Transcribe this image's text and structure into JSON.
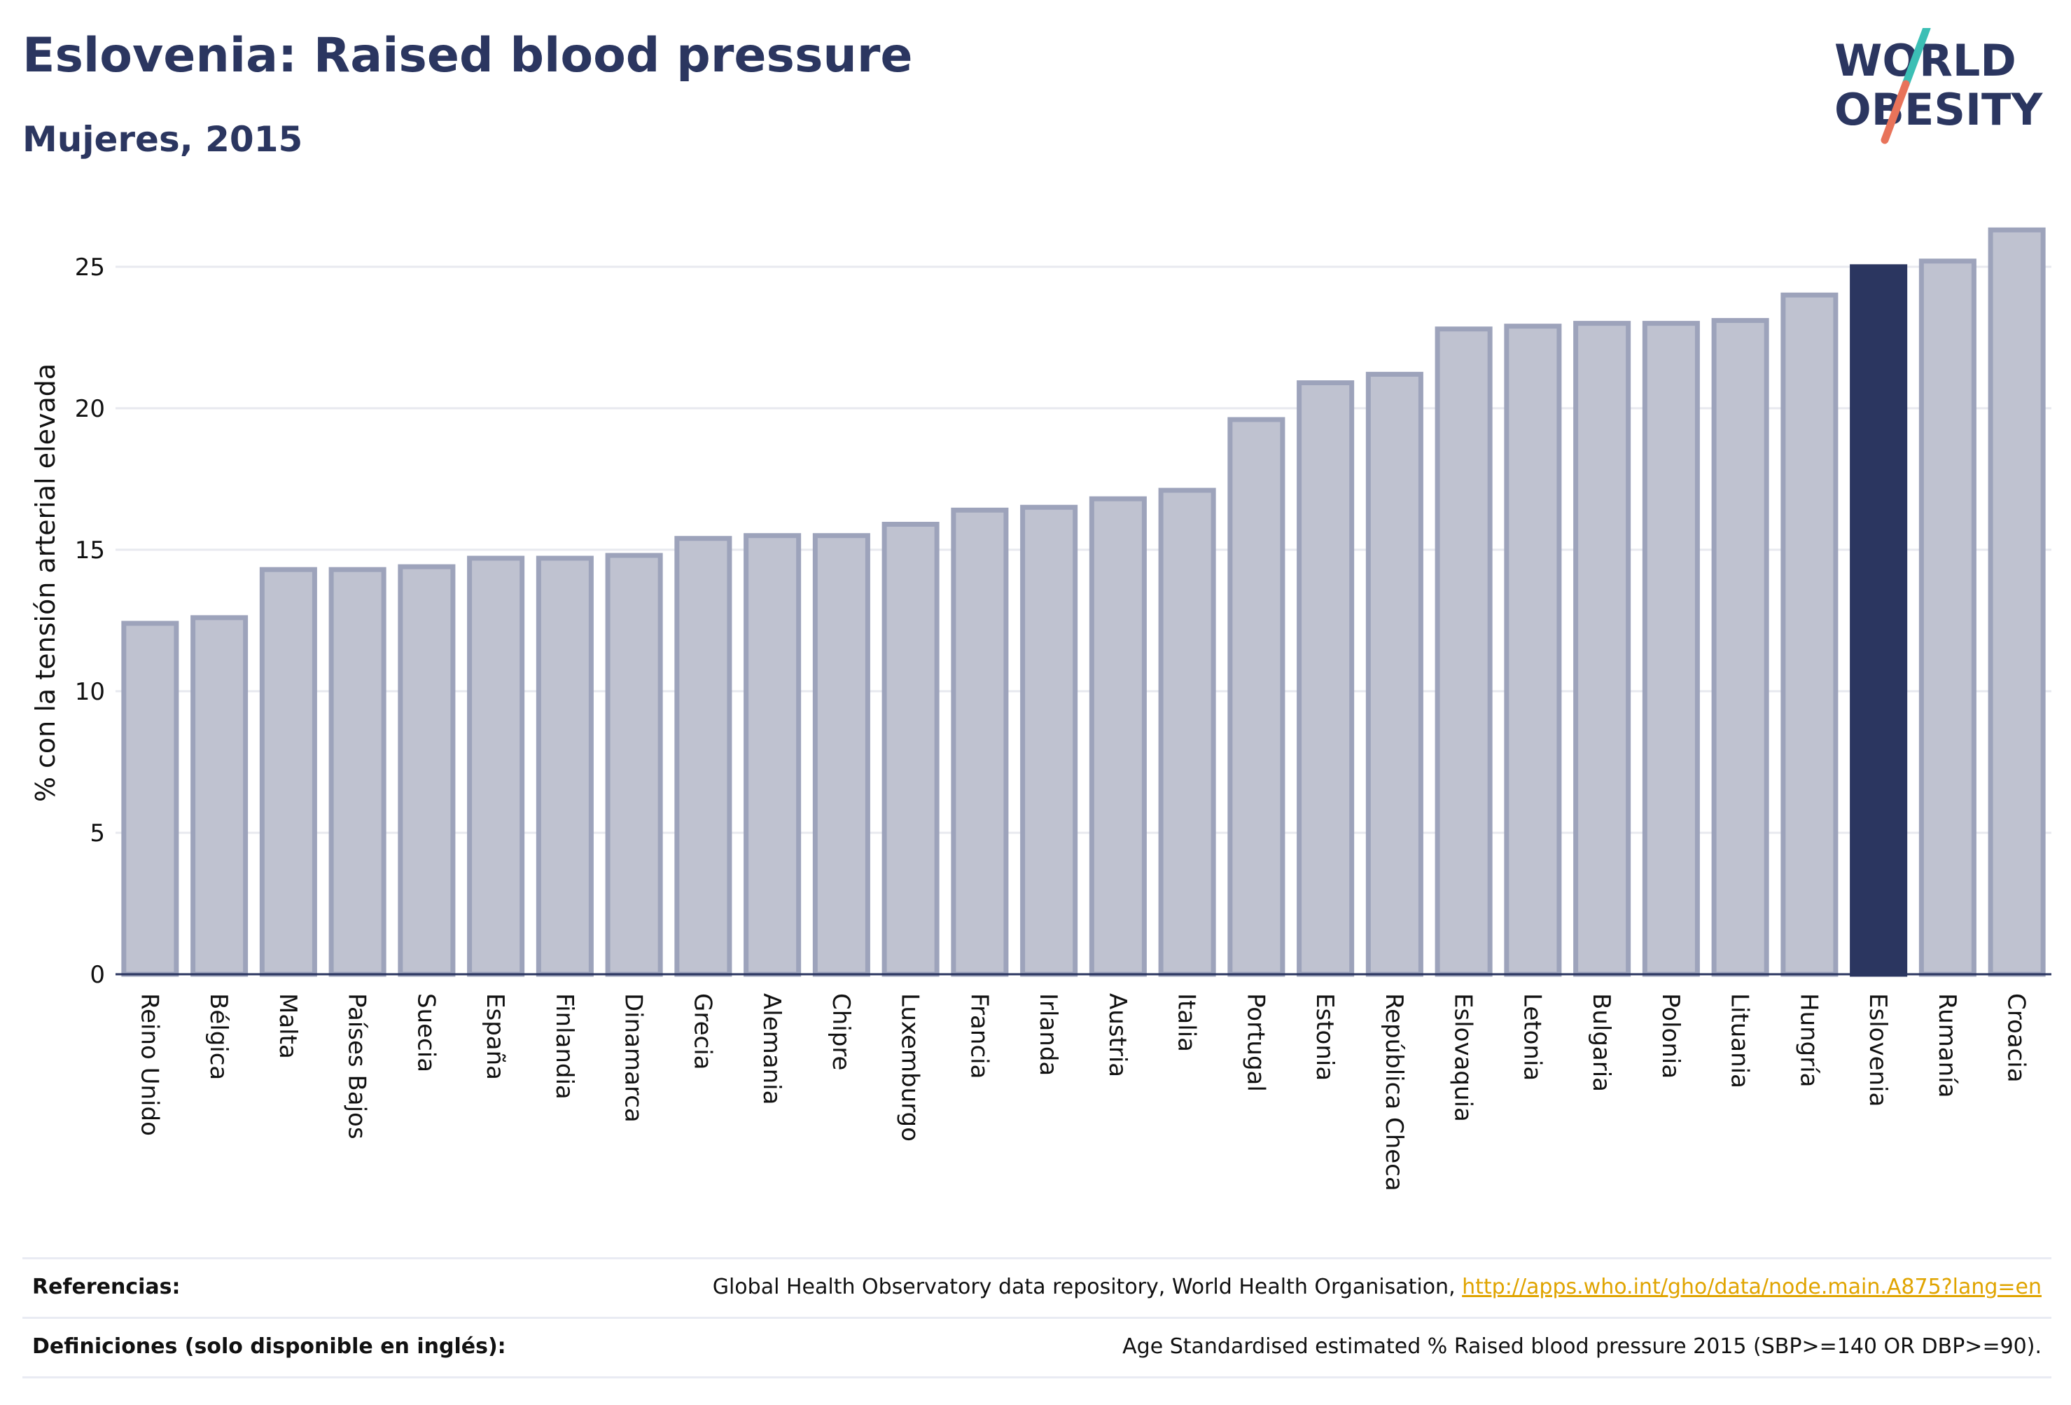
{
  "header": {
    "title": "Eslovenia: Raised blood pressure",
    "subtitle": "Mujeres, 2015"
  },
  "logo": {
    "line1": "WORLD",
    "line2": "OBESITY",
    "colors": {
      "text": "#2b3660",
      "slash_top": "#3cbfb5",
      "slash_bottom": "#e8735a"
    }
  },
  "chart_data": {
    "type": "bar",
    "ylabel": "% con la tensión arterial elevada",
    "xlabel": "",
    "ylim": [
      0,
      27
    ],
    "yticks": [
      0,
      5,
      10,
      15,
      20,
      25
    ],
    "grid": true,
    "categories": [
      "Reino Unido",
      "Bélgica",
      "Malta",
      "Países Bajos",
      "Suecia",
      "España",
      "Finlandia",
      "Dinamarca",
      "Grecia",
      "Alemania",
      "Chipre",
      "Luxemburgo",
      "Francia",
      "Irlanda",
      "Austria",
      "Italia",
      "Portugal",
      "Estonia",
      "República Checa",
      "Eslovaquia",
      "Letonia",
      "Bulgaria",
      "Polonia",
      "Lituania",
      "Hungría",
      "Eslovenia",
      "Rumanía",
      "Croacia"
    ],
    "values": [
      12.4,
      12.6,
      14.3,
      14.3,
      14.4,
      14.7,
      14.7,
      14.8,
      15.4,
      15.5,
      15.5,
      15.9,
      16.4,
      16.5,
      16.8,
      17.1,
      19.6,
      20.9,
      21.2,
      22.8,
      22.9,
      23.0,
      23.0,
      23.1,
      24.0,
      25.0,
      25.2,
      26.3
    ],
    "highlight": "Eslovenia",
    "colors": {
      "bar_fill": "#bfc2d0",
      "bar_stroke": "#9da3bb",
      "highlight": "#2b3660",
      "grid": "#e8e9ef",
      "axis": "#2b3660"
    }
  },
  "footer": {
    "references_label": "Referencias:",
    "references_text": "Global Health Observatory data repository, World Health Organisation, ",
    "references_link": "http://apps.who.int/gho/data/node.main.A875?lang=en",
    "definitions_label": "Definiciones (solo disponible en inglés):",
    "definitions_text": "Age Standardised estimated % Raised blood pressure 2015 (SBP>=140 OR DBP>=90)."
  }
}
